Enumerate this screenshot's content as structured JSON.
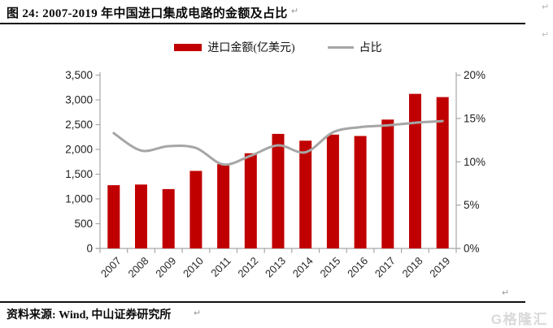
{
  "header": {
    "title": "图 24: 2007-2019 年中国进口集成电路的金额及占比"
  },
  "marks": {
    "return": "↵"
  },
  "legend": {
    "import_label": "进口金额(亿美元)",
    "share_label": "占比"
  },
  "chart_data": {
    "type": "bar",
    "subtype": "bar+line combo with dual value axes",
    "title": "2007-2019 年中国进口集成电路的金额及占比",
    "categories": [
      "2007",
      "2008",
      "2009",
      "2010",
      "2011",
      "2012",
      "2013",
      "2014",
      "2015",
      "2016",
      "2017",
      "2018",
      "2019"
    ],
    "series": [
      {
        "name": "进口金额(亿美元)",
        "type": "bar",
        "axis": "left",
        "color": "#c00000",
        "values": [
          1277,
          1290,
          1199,
          1565,
          1702,
          1921,
          2313,
          2176,
          2299,
          2270,
          2601,
          3121,
          3055
        ]
      },
      {
        "name": "占比",
        "type": "line",
        "axis": "right",
        "color": "#a6a6a6",
        "values": [
          13.3,
          11.3,
          11.8,
          11.6,
          9.7,
          10.7,
          11.9,
          11.1,
          13.4,
          14.0,
          14.2,
          14.5,
          14.7
        ]
      }
    ],
    "left_axis": {
      "min": 0,
      "max": 3500,
      "step": 500,
      "ticks": [
        "3,500",
        "3,000",
        "2,500",
        "2,000",
        "1,500",
        "1,000",
        "500",
        "0"
      ]
    },
    "right_axis": {
      "min": 0,
      "max": 20,
      "step": 5,
      "ticks": [
        "20%",
        "15%",
        "10%",
        "5%",
        "0%"
      ]
    },
    "grid": false,
    "legend_position": "top"
  },
  "footer": {
    "source": "资料来源: Wind, 中山证券研究所",
    "watermark": "G格隆汇"
  },
  "colors": {
    "bar_red": "#c00000",
    "line_gray": "#a6a6a6",
    "axis_gray": "#a6a6a6",
    "divider_black": "#101010",
    "watermark_gray": "#d9d9d9"
  }
}
